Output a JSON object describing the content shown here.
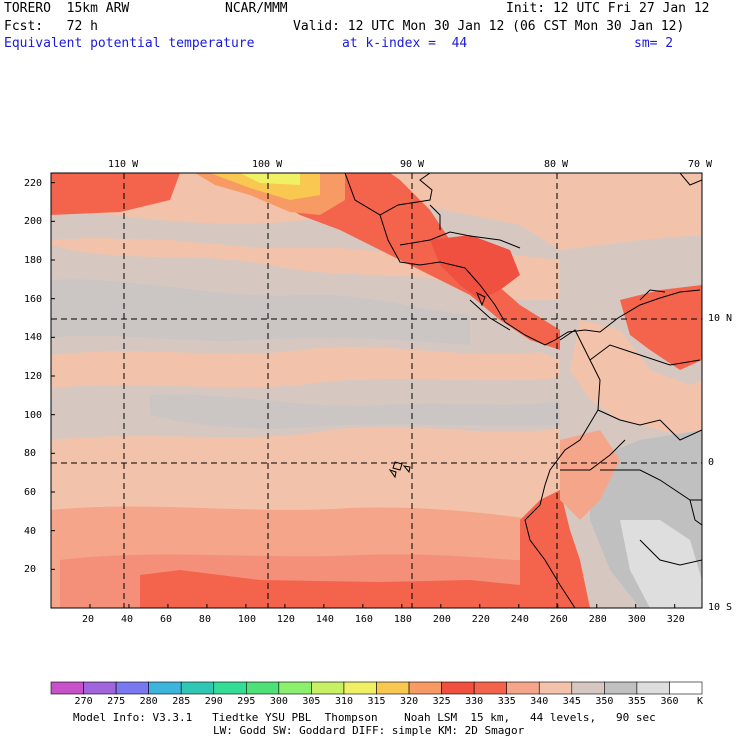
{
  "header": {
    "line1_left": "TORERO  15km ARW",
    "line1_center": "NCAR/MMM",
    "line1_right": "Init: 12 UTC Fri 27 Jan 12",
    "line2_left": "Fcst:   72 h",
    "line2_right": "Valid: 12 UTC Mon 30 Jan 12 (06 CST Mon 30 Jan 12)",
    "line3_left": "Equivalent potential temperature",
    "line3_center": "at k-index =  44",
    "line3_right": "sm= 2"
  },
  "map": {
    "top_lon_labels": [
      "110 W",
      "100 W",
      "90 W",
      "80 W",
      "70 W"
    ],
    "right_lat_labels": [
      "10 N",
      "0",
      "10 S"
    ],
    "left_y_ticks": [
      "220",
      "200",
      "180",
      "160",
      "140",
      "120",
      "100",
      "80",
      "60",
      "40",
      "20"
    ],
    "bottom_x_ticks": [
      "20",
      "40",
      "60",
      "80",
      "100",
      "120",
      "140",
      "160",
      "180",
      "200",
      "220",
      "240",
      "260",
      "280",
      "300",
      "320"
    ]
  },
  "colorbar": {
    "labels": [
      "270",
      "275",
      "280",
      "285",
      "290",
      "295",
      "300",
      "305",
      "310",
      "315",
      "320",
      "325",
      "330",
      "335",
      "340",
      "345",
      "350",
      "355",
      "360"
    ],
    "unit": "K",
    "colors": [
      "#c850c8",
      "#a064dc",
      "#7a78f0",
      "#3cb4dc",
      "#30c8b4",
      "#34dc96",
      "#50e078",
      "#8cf06e",
      "#c8f064",
      "#f0f064",
      "#f8c850",
      "#f89a64",
      "#f05040",
      "#f4644c",
      "#f5a58a",
      "#f2c3aa",
      "#d6c8c1",
      "#c0c0c0",
      "#dedede",
      "#ffffff"
    ]
  },
  "footer": {
    "line1": "Model Info: V3.3.1   Tiedtke YSU PBL  Thompson    Noah LSM  15 km,   44 levels,   90 sec",
    "line2": "LW: Godd SW: Goddard DIFF: simple KM: 2D Smagor"
  }
}
